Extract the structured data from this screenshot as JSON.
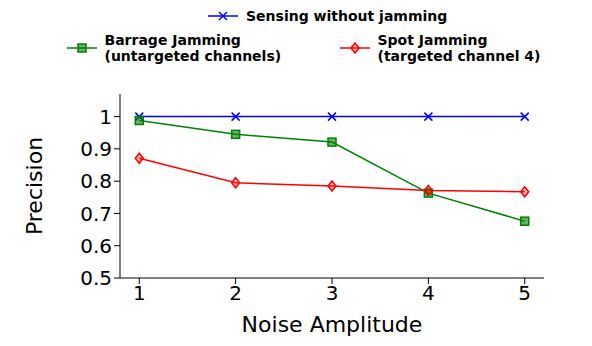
{
  "chart_data": {
    "type": "line",
    "x": [
      1,
      2,
      3,
      4,
      5
    ],
    "xlabel": "Noise Amplitude",
    "ylabel": "Precision",
    "xlim": [
      0.8,
      5.2
    ],
    "xticks": [
      1,
      2,
      3,
      4,
      5
    ],
    "ylim": [
      0.5,
      1.07
    ],
    "yticks": [
      0.5,
      0.6,
      0.7,
      0.8,
      0.9,
      1
    ],
    "legend": "top",
    "grid": false,
    "series": [
      {
        "name": "Sensing without jamming",
        "color": "#0000ff",
        "marker": "x",
        "values": [
          1,
          1,
          1,
          1,
          1
        ]
      },
      {
        "name": "Barrage Jamming (untargeted channels)",
        "color": "#008000",
        "marker": "square",
        "values": [
          0.988,
          0.945,
          0.921,
          0.763,
          0.676
        ]
      },
      {
        "name": "Spot Jamming (targeted channel 4)",
        "color": "#ff0000",
        "marker": "diamond",
        "values": [
          0.871,
          0.795,
          0.785,
          0.771,
          0.767
        ]
      }
    ]
  }
}
